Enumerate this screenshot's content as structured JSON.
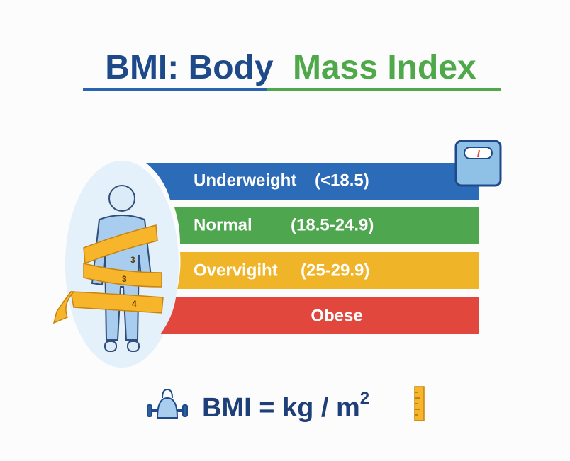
{
  "title": {
    "part1": "BMI: Body",
    "part2": "Mass Index"
  },
  "categories": [
    {
      "name": "Underweight",
      "range": "(<18.5)"
    },
    {
      "name": "Normal",
      "range": "(18.5-24.9)"
    },
    {
      "name": "Overvigiht",
      "range": "(25-29.9)"
    },
    {
      "name": "Obese"
    }
  ],
  "tape": {
    "labels": [
      "3",
      "3",
      "4"
    ]
  },
  "formula": {
    "text": "BMI = kg / m",
    "superscript": "2"
  }
}
